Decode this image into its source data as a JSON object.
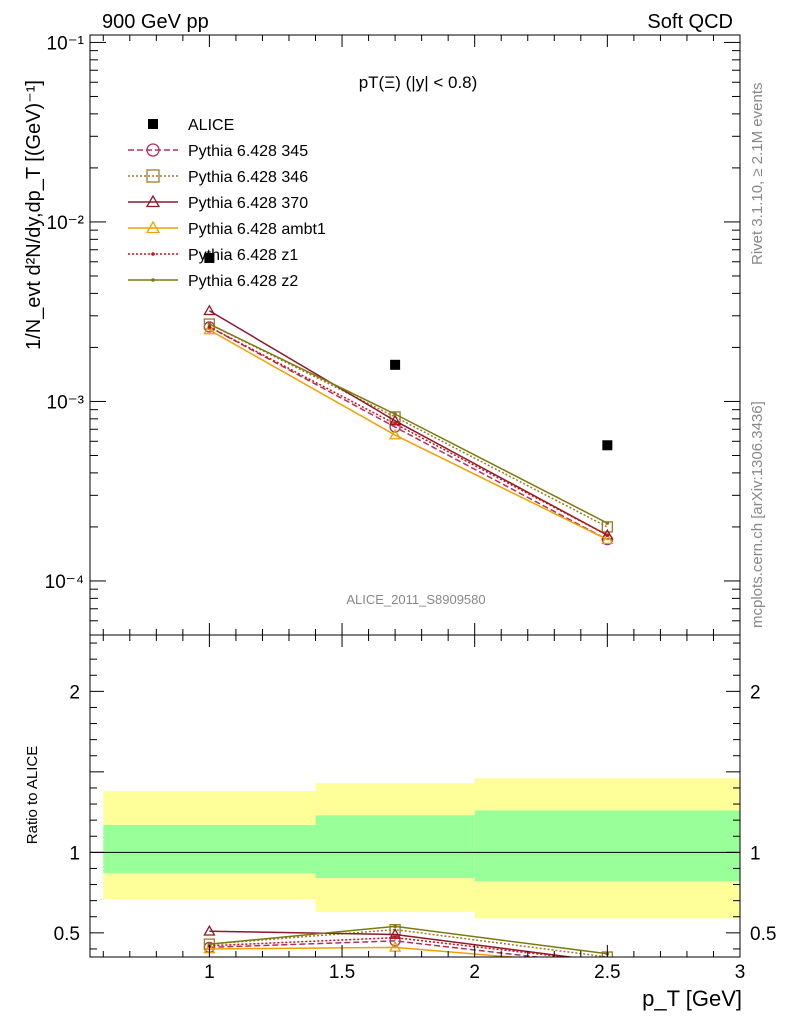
{
  "header": {
    "left": "900 GeV pp",
    "right": "Soft QCD"
  },
  "side_labels": {
    "rivet": "Rivet 3.1.10, ≥ 2.1M events",
    "mcplots": "mcplots.cern.ch [arXiv:1306.3436]"
  },
  "watermark": "ALICE_2011_S8909580",
  "panel_title": "pT(Ξ) (|y| < 0.8)",
  "chart_data": [
    {
      "type": "scatter",
      "name_hint": "main-panel",
      "ylabel": "1/N_evt d²N/dy,dp_T [(GeV)⁻¹]",
      "xlim": [
        0.55,
        3.0
      ],
      "ylim": [
        5e-05,
        0.11
      ],
      "yscale": "log",
      "ytick_labels": [
        "10⁻⁴",
        "10⁻³",
        "10⁻²",
        "10⁻¹"
      ],
      "x": [
        1.0,
        1.7,
        2.5
      ],
      "series": [
        {
          "name": "ALICE",
          "values": [
            0.0063,
            0.0016,
            0.00057
          ],
          "color": "#000000",
          "marker": "square-filled"
        },
        {
          "name": "Pythia 6.428 345",
          "values": [
            0.0026,
            0.00072,
            0.00017
          ],
          "color": "#b03060",
          "marker": "circle-open",
          "dash": "6,3"
        },
        {
          "name": "Pythia 6.428 346",
          "values": [
            0.0027,
            0.00082,
            0.0002
          ],
          "color": "#a07828",
          "marker": "square-open",
          "dash": "2,2"
        },
        {
          "name": "Pythia 6.428 370",
          "values": [
            0.0032,
            0.00078,
            0.00018
          ],
          "color": "#8b1a2a",
          "marker": "triangle-open",
          "dash": ""
        },
        {
          "name": "Pythia 6.428 ambt1",
          "values": [
            0.0025,
            0.00065,
            0.00017
          ],
          "color": "#f0a000",
          "marker": "triangle-open",
          "dash": ""
        },
        {
          "name": "Pythia 6.428 z1",
          "values": [
            0.0026,
            0.00075,
            0.00018
          ],
          "color": "#cc1010",
          "marker": "dot",
          "dash": "2,2"
        },
        {
          "name": "Pythia 6.428 z2",
          "values": [
            0.0027,
            0.00085,
            0.00021
          ],
          "color": "#7a7a10",
          "marker": "dot",
          "dash": ""
        }
      ],
      "legend_position": "top-left"
    },
    {
      "type": "line",
      "name_hint": "ratio-panel",
      "xlabel": "p_T [GeV]",
      "ylabel": "Ratio to ALICE",
      "xlim": [
        0.55,
        3.0
      ],
      "ylim": [
        0.35,
        2.35
      ],
      "xtick_labels": [
        "1",
        "1.5",
        "2",
        "2.5",
        "3"
      ],
      "ytick_labels": [
        "0.5",
        "1",
        "2"
      ],
      "bands": [
        {
          "x0": 0.6,
          "x1": 1.4,
          "yellow": [
            0.71,
            1.38
          ],
          "green": [
            0.87,
            1.17
          ]
        },
        {
          "x0": 1.4,
          "x1": 2.0,
          "yellow": [
            0.63,
            1.43
          ],
          "green": [
            0.84,
            1.23
          ]
        },
        {
          "x0": 2.0,
          "x1": 3.0,
          "yellow": [
            0.59,
            1.46
          ],
          "green": [
            0.82,
            1.26
          ]
        }
      ],
      "x": [
        1.0,
        1.7,
        2.5
      ],
      "series": [
        {
          "name": "Pythia 6.428 345",
          "values": [
            0.41,
            0.45,
            0.3
          ]
        },
        {
          "name": "Pythia 6.428 346",
          "values": [
            0.43,
            0.52,
            0.35
          ]
        },
        {
          "name": "Pythia 6.428 370",
          "values": [
            0.51,
            0.49,
            0.32
          ]
        },
        {
          "name": "Pythia 6.428 ambt1",
          "values": [
            0.4,
            0.41,
            0.3
          ]
        },
        {
          "name": "Pythia 6.428 z1",
          "values": [
            0.42,
            0.47,
            0.32
          ]
        },
        {
          "name": "Pythia 6.428 z2",
          "values": [
            0.43,
            0.54,
            0.37
          ]
        }
      ]
    }
  ]
}
